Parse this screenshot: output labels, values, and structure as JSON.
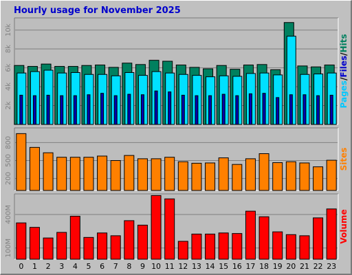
{
  "title": "Hourly usage for November 2025",
  "colors": {
    "background": "#c0c0c0",
    "plot_background": "#bdbdbd",
    "grid": "#808080",
    "title": "#0000cc",
    "hits": "#00805f",
    "files": "#00e0ff",
    "pages": "#0000b0",
    "sites": "#ff8000",
    "volume": "#ff0000",
    "legend_hits": "#00805f",
    "legend_files": "#0000cc",
    "legend_pages": "#00c8ff"
  },
  "chart_data": [
    {
      "type": "bar",
      "name_text": "Pages/Files/Hits",
      "legend_parts": [
        "Pages",
        "/",
        "Files",
        "/",
        "Hits"
      ],
      "grid": true,
      "ylim": [
        0,
        11000
      ],
      "yticks": [
        2000,
        4000,
        6000,
        8000,
        10000
      ],
      "ytick_labels": [
        "2k",
        "4k",
        "6k",
        "8k",
        "10k"
      ],
      "categories": [
        "0",
        "1",
        "2",
        "3",
        "4",
        "5",
        "6",
        "7",
        "8",
        "9",
        "10",
        "11",
        "12",
        "13",
        "14",
        "15",
        "16",
        "17",
        "18",
        "19",
        "20",
        "21",
        "22",
        "23"
      ],
      "series": [
        {
          "name": "Hits",
          "values": [
            6250,
            6150,
            6400,
            6150,
            6150,
            6250,
            6300,
            6050,
            6500,
            6350,
            6800,
            6700,
            6300,
            6050,
            5900,
            6250,
            5850,
            6300,
            6350,
            5800,
            10800,
            6200,
            6100,
            6300
          ]
        },
        {
          "name": "Files",
          "values": [
            5450,
            5600,
            5750,
            5450,
            5500,
            5300,
            5300,
            5150,
            5500,
            5200,
            5600,
            5450,
            5300,
            5200,
            5050,
            5150,
            5100,
            5400,
            5450,
            5250,
            9350,
            5300,
            5350,
            5450
          ]
        },
        {
          "name": "Pages",
          "values": [
            3100,
            3050,
            3100,
            3050,
            3050,
            3150,
            3300,
            3050,
            3200,
            3150,
            3550,
            3450,
            3100,
            3050,
            3050,
            3200,
            3050,
            3250,
            3300,
            2850,
            3150,
            3150,
            3050,
            3100
          ]
        }
      ]
    },
    {
      "type": "bar",
      "name_text": "Sites",
      "grid": true,
      "ylim": [
        0,
        1000
      ],
      "yticks": [
        200,
        500,
        800
      ],
      "ytick_labels": [
        "200",
        "500",
        "800"
      ],
      "categories": [
        "0",
        "1",
        "2",
        "3",
        "4",
        "5",
        "6",
        "7",
        "8",
        "9",
        "10",
        "11",
        "12",
        "13",
        "14",
        "15",
        "16",
        "17",
        "18",
        "19",
        "20",
        "21",
        "22",
        "23"
      ],
      "series": [
        {
          "name": "Sites",
          "values": [
            950,
            720,
            630,
            555,
            555,
            555,
            575,
            500,
            585,
            530,
            530,
            555,
            480,
            455,
            460,
            545,
            435,
            530,
            615,
            465,
            480,
            460,
            395,
            505
          ]
        }
      ]
    },
    {
      "type": "bar",
      "name_text": "Volume",
      "grid": true,
      "ylim": [
        0,
        560
      ],
      "yticks": [
        100,
        400
      ],
      "ytick_labels": [
        "100M",
        "400M"
      ],
      "categories": [
        "0",
        "1",
        "2",
        "3",
        "4",
        "5",
        "6",
        "7",
        "8",
        "9",
        "10",
        "11",
        "12",
        "13",
        "14",
        "15",
        "16",
        "17",
        "18",
        "19",
        "20",
        "21",
        "22",
        "23"
      ],
      "series": [
        {
          "name": "Volume",
          "values": [
            325,
            285,
            190,
            240,
            385,
            195,
            235,
            210,
            345,
            305,
            570,
            540,
            160,
            225,
            225,
            235,
            230,
            430,
            380,
            245,
            220,
            210,
            370,
            450
          ]
        }
      ]
    }
  ]
}
